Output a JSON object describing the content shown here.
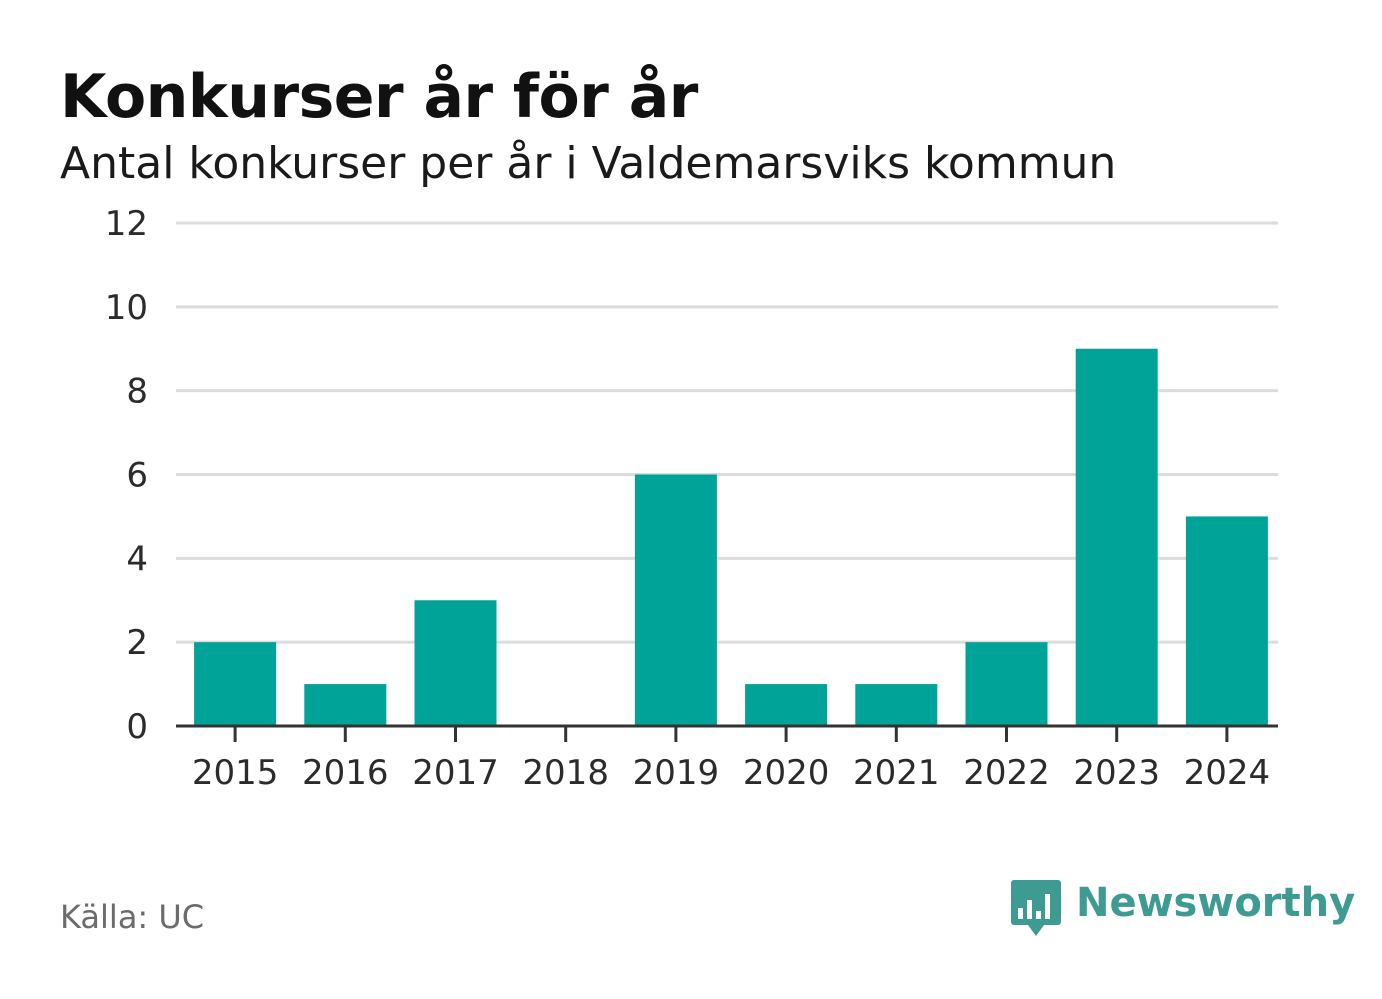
{
  "header": {
    "title": "Konkurser år för år",
    "subtitle": "Antal konkurser per år i Valdemarsviks kommun"
  },
  "chart_data": {
    "type": "bar",
    "title": "Konkurser år för år",
    "subtitle": "Antal konkurser per år i Valdemarsviks kommun",
    "categories": [
      "2015",
      "2016",
      "2017",
      "2018",
      "2019",
      "2020",
      "2021",
      "2022",
      "2023",
      "2024"
    ],
    "values": [
      2,
      1,
      3,
      0,
      6,
      1,
      1,
      2,
      9,
      5
    ],
    "xlabel": "",
    "ylabel": "",
    "ylim": [
      0,
      12
    ],
    "yticks": [
      0,
      2,
      4,
      6,
      8,
      10,
      12
    ],
    "grid": true,
    "bar_color": "#00a398",
    "legend": "none"
  },
  "footer": {
    "source": "Källa: UC",
    "brand": "Newsworthy",
    "brand_icon": "bar-chart-speech-bubble-icon",
    "brand_color": "#3e9b92"
  }
}
